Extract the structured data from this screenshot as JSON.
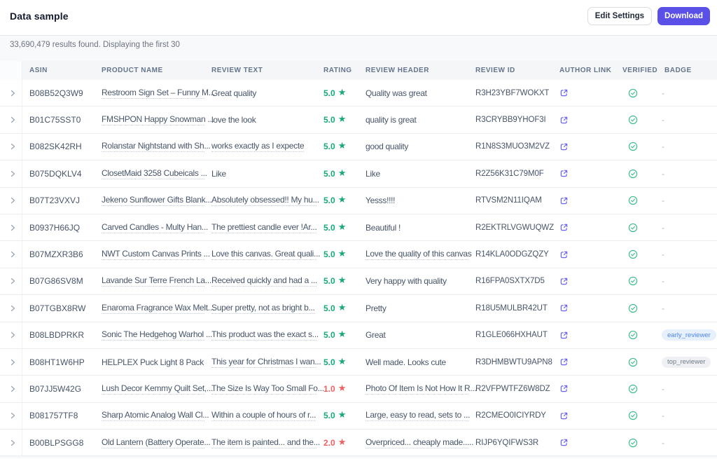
{
  "header": {
    "title": "Data sample",
    "edit_settings_label": "Edit Settings",
    "download_label": "Download"
  },
  "summary": {
    "text": "33,690,479 results found. Displaying the first 30"
  },
  "colors": {
    "accent": "#5a50e8",
    "rating_positive": "#17a87b",
    "rating_negative": "#ee5f5f",
    "link_icon": "#6d66f3",
    "verified_icon": "#3dbd8c",
    "badge_blue_bg": "#e7f0fd",
    "badge_blue_text": "#4b87f5",
    "badge_gray_bg": "#eef0f3",
    "badge_gray_text": "#717d8a"
  },
  "table": {
    "columns": [
      "ASIN",
      "PRODUCT NAME",
      "REVIEW TEXT",
      "RATING",
      "REVIEW HEADER",
      "REVIEW ID",
      "AUTHOR LINK",
      "VERIFIED",
      "BADGE"
    ],
    "rows": [
      {
        "asin": "B08B52Q3W9",
        "product_name": "Restroom Sign Set – Funny M...",
        "review_text": "Great quality",
        "rating": "5.0",
        "review_header": "Quality was great",
        "review_id": "R3H23YBF7WOKXT",
        "author_link": true,
        "verified": true,
        "badge": ""
      },
      {
        "asin": "B01C75SST0",
        "product_name": "FMSHPON Happy Snowman ...",
        "review_text": "love the look",
        "rating": "5.0",
        "review_header": "quality is great",
        "review_id": "R3CRYBB9YHOF3I",
        "author_link": true,
        "verified": true,
        "badge": ""
      },
      {
        "asin": "B082SK42RH",
        "product_name": "Rolanstar Nightstand with Sh...",
        "review_text": "works exactly as I expecte",
        "rating": "5.0",
        "review_header": "good quality",
        "review_id": "R1N8S3MUO3M2VZ",
        "author_link": true,
        "verified": true,
        "badge": ""
      },
      {
        "asin": "B075DQKLV4",
        "product_name": "ClosetMaid 3258 Cubeicals ...",
        "review_text": "Like",
        "rating": "5.0",
        "review_header": "Like",
        "review_id": "R2Z56K31C79M0F",
        "author_link": true,
        "verified": true,
        "badge": ""
      },
      {
        "asin": "B07T23VXVJ",
        "product_name": "Jekeno Sunflower Gifts Blank...",
        "review_text": "Absolutely obsessed!! My hu...",
        "rating": "5.0",
        "review_header": "Yesss!!!!",
        "review_id": "RTVSM2N11IQAM",
        "author_link": true,
        "verified": true,
        "badge": ""
      },
      {
        "asin": "B0937H66JQ",
        "product_name": "Carved Candles - Multy Han...",
        "review_text": "The prettiest candle ever !Ar...",
        "rating": "5.0",
        "review_header": "Beautiful !",
        "review_id": "R2EKTRLVGWUQWZ",
        "author_link": true,
        "verified": true,
        "badge": ""
      },
      {
        "asin": "B07MZXR3B6",
        "product_name": "NWT Custom Canvas Prints ...",
        "review_text": "Love this canvas. Great quali...",
        "rating": "5.0",
        "review_header": "Love the quality of this canvas",
        "review_id": "R14KLA0ODGZQZY",
        "author_link": true,
        "verified": true,
        "badge": ""
      },
      {
        "asin": "B07G86SV8M",
        "product_name": "Lavande Sur Terre French La...",
        "review_text": "Received quickly and had a ...",
        "rating": "5.0",
        "review_header": "Very happy with quality",
        "review_id": "R16FPA0SXTX7D5",
        "author_link": true,
        "verified": true,
        "badge": ""
      },
      {
        "asin": "B07TGBX8RW",
        "product_name": "Enaroma Fragrance Wax Melt...",
        "review_text": "Super pretty, not as bright b...",
        "rating": "5.0",
        "review_header": "Pretty",
        "review_id": "R18U5MULBR42UT",
        "author_link": true,
        "verified": true,
        "badge": ""
      },
      {
        "asin": "B08LBDPRKR",
        "product_name": "Sonic The Hedgehog Warhol ...",
        "review_text": "This product was the exact s...",
        "rating": "5.0",
        "review_header": "Great",
        "review_id": "R1GLE066HXHAUT",
        "author_link": true,
        "verified": true,
        "badge": "early_reviewer"
      },
      {
        "asin": "B08HT1W6HP",
        "product_name": "HELPLEX Puck Light 8 Pack",
        "review_text": "This year for Christmas I wan...",
        "rating": "5.0",
        "review_header": "Well made. Looks cute",
        "review_id": "R3DHMBWTU9APN8",
        "author_link": true,
        "verified": true,
        "badge": "top_reviewer"
      },
      {
        "asin": "B07JJ5W42G",
        "product_name": "Lush Decor Kemmy Quilt Set,...",
        "review_text": "The Size Is Way Too Small Fo...",
        "rating": "1.0",
        "review_header": "Photo Of Item Is Not How It R...",
        "review_id": "R2VFPWTFZ6W8DZ",
        "author_link": true,
        "verified": true,
        "badge": ""
      },
      {
        "asin": "B081757TF8",
        "product_name": "Sharp Atomic Analog Wall Cl...",
        "review_text": "Within a couple of hours of r...",
        "rating": "5.0",
        "review_header": "Large, easy to read, sets to ...",
        "review_id": "R2CMEO0ICIYRDY",
        "author_link": true,
        "verified": true,
        "badge": ""
      },
      {
        "asin": "B00BLPSGG8",
        "product_name": "Old Lantern (Battery Operate...",
        "review_text": "The item is painted... and the...",
        "rating": "2.0",
        "review_header": "Overpriced... cheaply made.....",
        "review_id": "RIJP6YQIFWS3R",
        "author_link": true,
        "verified": true,
        "badge": ""
      }
    ]
  }
}
